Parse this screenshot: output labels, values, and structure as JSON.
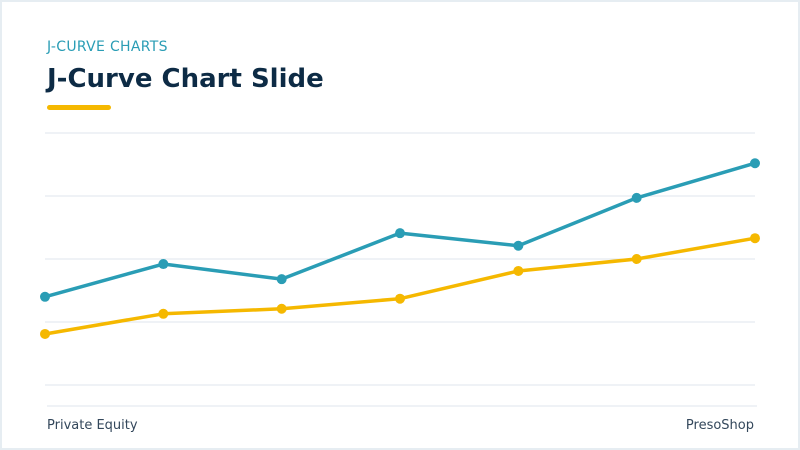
{
  "chart_data": {
    "type": "line",
    "title": "J-Curve Chart Slide",
    "subtitle": "J-CURVE CHARTS",
    "footer_left": "Private Equity",
    "footer_right": "PresoShop",
    "categories": [
      null,
      null,
      null,
      null,
      null,
      null,
      null
    ],
    "series": [
      {
        "color": "#2a9db5",
        "values": [
          1.4,
          1.92,
          1.68,
          2.41,
          2.21,
          2.97,
          3.52
        ]
      },
      {
        "color": "#f5b800",
        "values": [
          0.81,
          1.13,
          1.21,
          1.37,
          1.81,
          2.0,
          2.33
        ]
      }
    ],
    "ylim": [
      0,
      4
    ],
    "yticks": [
      0,
      1,
      2,
      3,
      4
    ],
    "grid": true
  }
}
